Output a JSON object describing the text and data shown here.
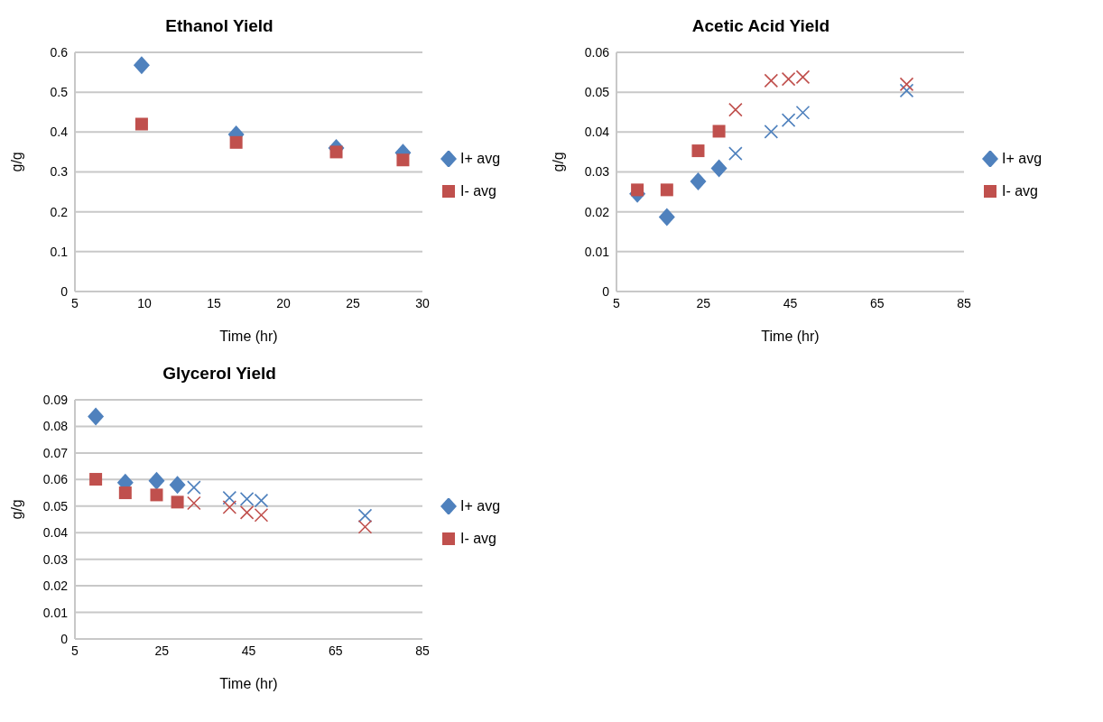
{
  "chart_data": [
    {
      "type": "scatter",
      "title": "Ethanol Yield",
      "xlabel": "Time (hr)",
      "ylabel": "g/g",
      "xlim": [
        5,
        30
      ],
      "xticks": [
        5,
        10,
        15,
        20,
        25,
        30
      ],
      "ylim": [
        0,
        0.6
      ],
      "yticks": [
        0,
        0.1,
        0.2,
        0.3,
        0.4,
        0.5,
        0.6
      ],
      "grid": "y",
      "legend": "right",
      "series": [
        {
          "name": "I+ avg",
          "color": "#4f81bd",
          "marker": "diamond",
          "x": [
            9.8,
            16.6,
            23.8,
            28.6
          ],
          "values": [
            0.568,
            0.394,
            0.36,
            0.348
          ]
        },
        {
          "name": "I- avg",
          "color": "#c0504d",
          "marker": "square",
          "x": [
            9.8,
            16.6,
            23.8,
            28.6
          ],
          "values": [
            0.42,
            0.374,
            0.35,
            0.33
          ]
        }
      ]
    },
    {
      "type": "scatter",
      "title": "Acetic Acid Yield",
      "xlabel": "Time (hr)",
      "ylabel": "g/g",
      "xlim": [
        5,
        85
      ],
      "xticks": [
        5,
        25,
        45,
        65,
        85
      ],
      "ylim": [
        0,
        0.06
      ],
      "yticks": [
        0,
        0.01,
        0.02,
        0.03,
        0.04,
        0.05,
        0.06
      ],
      "grid": "y",
      "legend": "right",
      "series": [
        {
          "name": "I+ avg",
          "color": "#4f81bd",
          "marker": "diamond",
          "x": [
            9.8,
            16.6,
            23.8,
            28.6
          ],
          "values": [
            0.0245,
            0.0187,
            0.0276,
            0.0309
          ]
        },
        {
          "name": "I- avg",
          "color": "#c0504d",
          "marker": "square",
          "x": [
            9.8,
            16.6,
            23.8,
            28.6
          ],
          "values": [
            0.0255,
            0.0255,
            0.0353,
            0.0402
          ]
        },
        {
          "color": "#4f81bd",
          "marker": "cross",
          "x": [
            32.4,
            40.6,
            44.6,
            47.9,
            71.8
          ],
          "values": [
            0.0346,
            0.0401,
            0.043,
            0.0449,
            0.0504
          ]
        },
        {
          "color": "#c0504d",
          "marker": "cross",
          "x": [
            32.4,
            40.6,
            44.6,
            47.9,
            71.8
          ],
          "values": [
            0.0456,
            0.0529,
            0.0533,
            0.0538,
            0.052
          ]
        }
      ]
    },
    {
      "type": "scatter",
      "title": "Glycerol Yield",
      "xlabel": "Time (hr)",
      "ylabel": "g/g",
      "xlim": [
        5,
        85
      ],
      "xticks": [
        5,
        25,
        45,
        65,
        85
      ],
      "ylim": [
        0,
        0.09
      ],
      "yticks": [
        0,
        0.01,
        0.02,
        0.03,
        0.04,
        0.05,
        0.06,
        0.07,
        0.08,
        0.09
      ],
      "grid": "y",
      "legend": "right",
      "series": [
        {
          "name": "I+ avg",
          "color": "#4f81bd",
          "marker": "diamond",
          "x": [
            9.8,
            16.6,
            23.8,
            28.6
          ],
          "values": [
            0.0837,
            0.0588,
            0.0595,
            0.058
          ]
        },
        {
          "name": "I- avg",
          "color": "#c0504d",
          "marker": "square",
          "x": [
            9.8,
            16.6,
            23.8,
            28.6
          ],
          "values": [
            0.0601,
            0.055,
            0.0542,
            0.0515
          ]
        },
        {
          "color": "#4f81bd",
          "marker": "cross",
          "x": [
            32.4,
            40.6,
            44.6,
            47.9,
            71.8
          ],
          "values": [
            0.057,
            0.0531,
            0.0527,
            0.0521,
            0.0464
          ]
        },
        {
          "color": "#c0504d",
          "marker": "cross",
          "x": [
            32.4,
            40.6,
            44.6,
            47.9,
            71.8
          ],
          "values": [
            0.0511,
            0.0496,
            0.0476,
            0.0466,
            0.0422
          ]
        }
      ]
    }
  ]
}
